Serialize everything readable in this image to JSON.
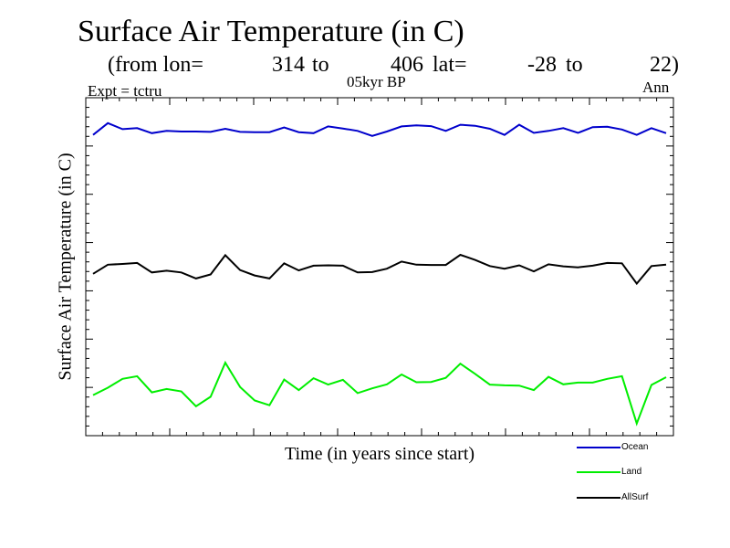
{
  "header": {
    "title": "Surface Air Temperature (in C)",
    "from_lon_label": "(from lon=",
    "lon_start": "314",
    "to_1": "to",
    "lon_end": "406",
    "lat_label": "lat=",
    "lat_start": "-28",
    "to_2": "to",
    "lat_end": "22)",
    "expt": "Expt = tctru",
    "period": "05kyr BP",
    "season": "Ann"
  },
  "chart_data": {
    "type": "line",
    "title": "Surface Air Temperature (in C)",
    "xlabel": "Time (in years since start)",
    "ylabel": "Surface Air Temperature (in C)",
    "x": [
      1,
      2,
      3,
      4,
      5,
      6,
      7,
      8,
      9,
      10,
      11,
      12,
      13,
      14,
      15,
      16,
      17,
      18,
      19,
      20,
      21,
      22,
      23,
      24,
      25,
      26,
      27,
      28,
      29,
      30,
      31,
      32,
      33,
      34,
      35,
      36,
      37,
      38,
      39,
      40
    ],
    "xlim": [
      0.5,
      40.5
    ],
    "ylim": [
      0,
      100
    ],
    "grid": false,
    "legend_position": "bottom-right",
    "series": [
      {
        "name": "Ocean",
        "color": "#0000cc",
        "values": [
          89.0,
          92.5,
          90.7,
          91.0,
          89.5,
          90.2,
          90.0,
          90.0,
          89.9,
          90.8,
          89.9,
          89.8,
          89.8,
          91.2,
          89.8,
          89.5,
          91.5,
          90.9,
          90.2,
          88.7,
          90.0,
          91.5,
          91.8,
          91.6,
          90.2,
          92.0,
          91.7,
          90.8,
          89.0,
          92.0,
          89.6,
          90.2,
          91.0,
          89.6,
          91.3,
          91.4,
          90.6,
          89.0,
          91.0,
          89.5
        ]
      },
      {
        "name": "Land",
        "color": "#00ee00",
        "values": [
          12.0,
          14.2,
          16.8,
          17.6,
          12.8,
          13.8,
          13.1,
          8.7,
          11.5,
          21.6,
          14.4,
          10.4,
          9.0,
          16.6,
          13.5,
          17.0,
          15.1,
          16.5,
          12.6,
          14.0,
          15.2,
          18.1,
          15.8,
          15.9,
          17.1,
          21.3,
          18.3,
          15.1,
          14.9,
          14.8,
          13.5,
          17.4,
          15.2,
          15.7,
          15.7,
          16.8,
          17.6,
          3.6,
          15.0,
          17.3
        ]
      },
      {
        "name": "AllSurf",
        "color": "#000000",
        "values": [
          47.9,
          50.6,
          50.8,
          51.1,
          48.3,
          48.8,
          48.3,
          46.5,
          47.7,
          53.4,
          49.0,
          47.4,
          46.5,
          51.0,
          48.9,
          50.3,
          50.4,
          50.3,
          48.3,
          48.4,
          49.4,
          51.5,
          50.6,
          50.5,
          50.5,
          53.5,
          52.0,
          50.2,
          49.4,
          50.4,
          48.6,
          50.7,
          50.1,
          49.8,
          50.3,
          51.1,
          51.0,
          45.0,
          50.2,
          50.6
        ]
      }
    ]
  }
}
